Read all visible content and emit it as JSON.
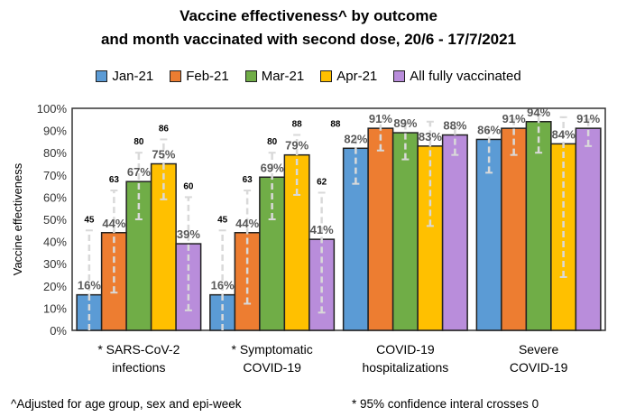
{
  "chart_data": {
    "type": "bar",
    "title_line1": "Vaccine effectiveness^ by outcome",
    "title_line2": "and month vaccinated with second dose, 20/6 - 17/7/2021",
    "ylabel": "Vaccine effectiveness",
    "ylim": [
      0,
      100
    ],
    "yticks": [
      "0%",
      "10%",
      "20%",
      "30%",
      "40%",
      "50%",
      "60%",
      "70%",
      "80%",
      "90%",
      "100%"
    ],
    "grid": false,
    "legend_position": "top",
    "categories": [
      {
        "marker": "*",
        "line1": "SARS-CoV-2",
        "line2": "infections"
      },
      {
        "marker": "*",
        "line1": "Symptomatic",
        "line2": "COVID-19"
      },
      {
        "marker": "",
        "line1": "COVID-19",
        "line2": "hospitalizations"
      },
      {
        "marker": "",
        "line1": "Severe",
        "line2": "COVID-19"
      }
    ],
    "series": [
      {
        "name": "Jan-21",
        "color": "#5b9bd5",
        "values": [
          16,
          16,
          82,
          86
        ],
        "ci_low": [
          -30,
          -30,
          66,
          71
        ],
        "ci_high": [
          45,
          45,
          86,
          90
        ],
        "ci_high_labels": [
          "45",
          "45",
          "",
          ""
        ]
      },
      {
        "name": "Feb-21",
        "color": "#ed7d31",
        "values": [
          44,
          44,
          91,
          91
        ],
        "ci_low": [
          17,
          12,
          81,
          79
        ],
        "ci_high": [
          63,
          63,
          94,
          95
        ],
        "ci_high_labels": [
          "63",
          "63",
          "",
          ""
        ]
      },
      {
        "name": "Mar-21",
        "color": "#70ad47",
        "values": [
          67,
          69,
          89,
          94
        ],
        "ci_low": [
          50,
          50,
          77,
          80
        ],
        "ci_high": [
          80,
          80,
          93,
          97
        ],
        "ci_high_labels": [
          "80",
          "80",
          "",
          ""
        ]
      },
      {
        "name": "Apr-21",
        "color": "#ffc000",
        "values": [
          75,
          79,
          83,
          84
        ],
        "ci_low": [
          59,
          61,
          47,
          24
        ],
        "ci_high": [
          86,
          88,
          94,
          96
        ],
        "ci_high_labels": [
          "86",
          "88",
          "",
          ""
        ]
      },
      {
        "name": "All fully vaccinated",
        "color": "#b98ddb",
        "values": [
          39,
          41,
          88,
          91
        ],
        "ci_low": [
          9,
          8,
          79,
          83
        ],
        "ci_high": [
          60,
          62,
          91,
          95
        ],
        "ci_high_labels": [
          "60",
          "62",
          "",
          ""
        ]
      }
    ],
    "extra_label": "88"
  },
  "footnotes": {
    "left": "^Adjusted for age group, sex and epi-week",
    "right": "* 95% confidence interal  crosses 0"
  }
}
